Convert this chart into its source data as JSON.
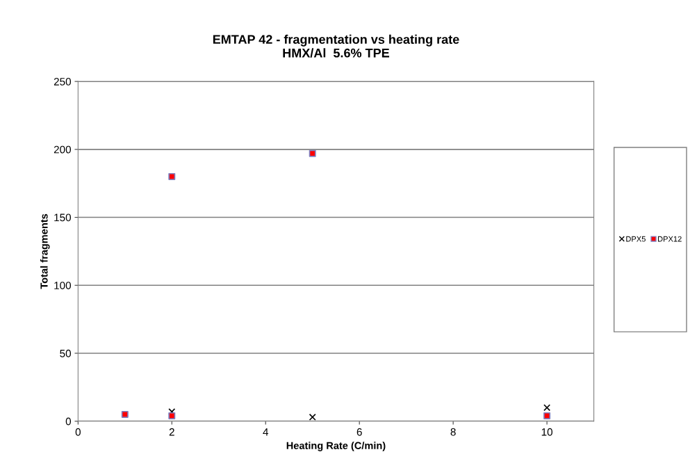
{
  "chart_data": {
    "type": "scatter",
    "title": "EMTAP 42 - fragmentation vs heating rate\nHMX/Al  5.6% TPE",
    "xlabel": "Heating Rate (C/min)",
    "ylabel": "Total fragments",
    "xlim": [
      0,
      11
    ],
    "xticks": [
      0,
      2,
      4,
      6,
      8,
      10
    ],
    "ylim": [
      0,
      250
    ],
    "yticks": [
      0,
      50,
      100,
      150,
      200,
      250
    ],
    "grid": "y",
    "legend": "right",
    "series": [
      {
        "name": "DPX5",
        "color": "#000000",
        "marker": "cross",
        "x": [
          2,
          5,
          10
        ],
        "values": [
          7,
          3,
          10
        ]
      },
      {
        "name": "DPX12",
        "color": "#ff0000",
        "marker": "square",
        "x": [
          1,
          2,
          2,
          5,
          10
        ],
        "values": [
          5,
          180,
          4,
          197,
          4
        ]
      }
    ]
  }
}
